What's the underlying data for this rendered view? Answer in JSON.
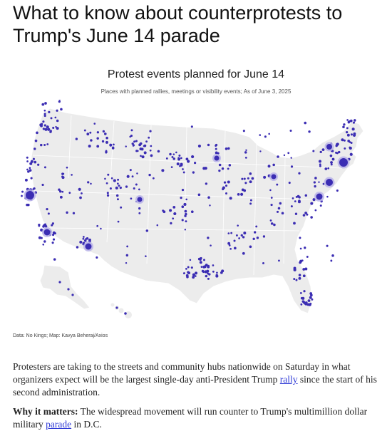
{
  "article": {
    "headline": "What to know about counterprotests to Trump's June 14 parade"
  },
  "map": {
    "title": "Protest events planned for June 14",
    "subtitle": "Places with planned rallies, meetings or visibility events; As of June 3, 2025",
    "credit": "Data: No Kings; Map: Kavya Beheraj/Axios",
    "colors": {
      "land": "#ececec",
      "border": "#ffffff",
      "dot": "#3b2db3",
      "halo": "#b7b0e8"
    }
  },
  "body": {
    "p1_before": "Protesters are taking to the streets and community hubs nationwide on Saturday in what organizers expect will be the largest single-day anti-President Trump ",
    "p1_link": "rally",
    "p1_after": " since the start of his second administration.",
    "p2_lead": "Why it matters:",
    "p2_before": " The widespread movement will run counter to Trump's multimillion dollar military ",
    "p2_link": "parade",
    "p2_after": " in D.C."
  }
}
